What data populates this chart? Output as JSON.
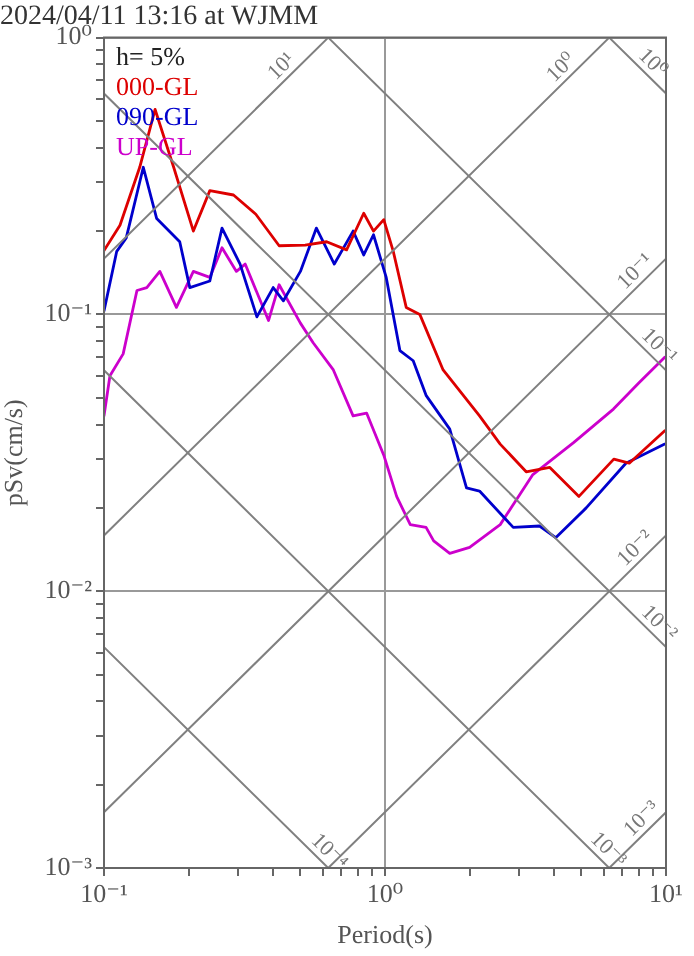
{
  "chart_data": {
    "type": "line",
    "title": "2024/04/11 13:16 at WJMM",
    "xlabel": "Period(s)",
    "ylabel": "pSv(cm/s)",
    "log": "xy",
    "grid": true,
    "legend": "top left",
    "marker": "none",
    "line_style": "solid",
    "xlim": [
      0.1,
      10
    ],
    "ylim": [
      0.001,
      1
    ],
    "xticks": [
      {
        "value": 0.1,
        "label": "10⁻¹"
      },
      {
        "value": 0.2,
        "label": null
      },
      {
        "value": 0.3,
        "label": null
      },
      {
        "value": 0.4,
        "label": null
      },
      {
        "value": 0.5,
        "label": null
      },
      {
        "value": 0.6,
        "label": null
      },
      {
        "value": 0.7,
        "label": null
      },
      {
        "value": 0.8,
        "label": null
      },
      {
        "value": 0.9,
        "label": null
      },
      {
        "value": 1,
        "label": "10⁰"
      },
      {
        "value": 2,
        "label": null
      },
      {
        "value": 3,
        "label": null
      },
      {
        "value": 4,
        "label": null
      },
      {
        "value": 5,
        "label": null
      },
      {
        "value": 6,
        "label": null
      },
      {
        "value": 7,
        "label": null
      },
      {
        "value": 8,
        "label": null
      },
      {
        "value": 9,
        "label": null
      },
      {
        "value": 10,
        "label": "10¹"
      }
    ],
    "yticks": [
      {
        "value": 0.001,
        "label": "10⁻³"
      },
      {
        "value": 0.002,
        "label": null
      },
      {
        "value": 0.003,
        "label": null
      },
      {
        "value": 0.004,
        "label": null
      },
      {
        "value": 0.005,
        "label": null
      },
      {
        "value": 0.006,
        "label": null
      },
      {
        "value": 0.007,
        "label": null
      },
      {
        "value": 0.008,
        "label": null
      },
      {
        "value": 0.009,
        "label": null
      },
      {
        "value": 0.01,
        "label": "10⁻²"
      },
      {
        "value": 0.02,
        "label": null
      },
      {
        "value": 0.03,
        "label": null
      },
      {
        "value": 0.04,
        "label": null
      },
      {
        "value": 0.05,
        "label": null
      },
      {
        "value": 0.06,
        "label": null
      },
      {
        "value": 0.07,
        "label": null
      },
      {
        "value": 0.08,
        "label": null
      },
      {
        "value": 0.09,
        "label": null
      },
      {
        "value": 0.1,
        "label": "10⁻¹"
      },
      {
        "value": 0.2,
        "label": null
      },
      {
        "value": 0.3,
        "label": null
      },
      {
        "value": 0.4,
        "label": null
      },
      {
        "value": 0.5,
        "label": null
      },
      {
        "value": 0.6,
        "label": null
      },
      {
        "value": 0.7,
        "label": null
      },
      {
        "value": 0.8,
        "label": null
      },
      {
        "value": 0.9,
        "label": null
      },
      {
        "value": 1,
        "label": "10⁰"
      }
    ],
    "series": [
      {
        "type": "line",
        "color": "#808080",
        "x": [
          0.1,
          0.628
        ],
        "values": [
          0.159,
          1
        ]
      },
      {
        "type": "line",
        "color": "#808080",
        "x": [
          0.1,
          6.28
        ],
        "values": [
          0.0159,
          1
        ]
      },
      {
        "type": "line",
        "color": "#808080",
        "x": [
          0.1,
          10
        ],
        "values": [
          0.00159,
          0.159
        ]
      },
      {
        "type": "line",
        "color": "#808080",
        "x": [
          0.628,
          10
        ],
        "values": [
          0.001,
          0.0159
        ]
      },
      {
        "type": "line",
        "color": "#808080",
        "x": [
          6.28,
          10
        ],
        "values": [
          0.001,
          0.00159
        ]
      },
      {
        "type": "line",
        "color": "#808080",
        "x": [
          6.28,
          10
        ],
        "values": [
          1,
          0.628
        ]
      },
      {
        "type": "line",
        "color": "#808080",
        "x": [
          0.628,
          10
        ],
        "values": [
          1,
          0.0628
        ]
      },
      {
        "type": "line",
        "color": "#808080",
        "x": [
          0.1,
          10
        ],
        "values": [
          0.628,
          0.00628
        ]
      },
      {
        "type": "line",
        "color": "#808080",
        "x": [
          0.1,
          6.28
        ],
        "values": [
          0.0628,
          0.001
        ]
      },
      {
        "type": "line",
        "color": "#808080",
        "x": [
          0.1,
          0.628
        ],
        "values": [
          0.00628,
          0.001
        ]
      },
      {
        "name": "000-GL",
        "color": "#dd0000",
        "x": [
          0.1,
          0.114,
          0.134,
          0.152,
          0.177,
          0.208,
          0.238,
          0.289,
          0.347,
          0.42,
          0.52,
          0.62,
          0.73,
          0.84,
          0.91,
          0.99,
          1.07,
          1.19,
          1.33,
          1.61,
          2.17,
          2.57,
          3.18,
          3.86,
          4.9,
          6.52,
          7.4,
          9.9
        ],
        "values": [
          0.17,
          0.21,
          0.34,
          0.55,
          0.34,
          0.2,
          0.28,
          0.27,
          0.23,
          0.177,
          0.178,
          0.183,
          0.171,
          0.232,
          0.2,
          0.22,
          0.169,
          0.106,
          0.1,
          0.063,
          0.043,
          0.034,
          0.027,
          0.028,
          0.022,
          0.03,
          0.029,
          0.038
        ]
      },
      {
        "name": "090-GL",
        "color": "#0000cc",
        "x": [
          0.1,
          0.111,
          0.12,
          0.138,
          0.154,
          0.186,
          0.202,
          0.238,
          0.263,
          0.305,
          0.35,
          0.4,
          0.435,
          0.5,
          0.57,
          0.66,
          0.77,
          0.84,
          0.91,
          1.01,
          1.13,
          1.26,
          1.4,
          1.7,
          1.95,
          2.17,
          2.86,
          3.55,
          4.05,
          5.2,
          7.2,
          9.9
        ],
        "values": [
          0.103,
          0.169,
          0.189,
          0.34,
          0.222,
          0.183,
          0.125,
          0.132,
          0.205,
          0.152,
          0.098,
          0.125,
          0.112,
          0.143,
          0.205,
          0.152,
          0.2,
          0.164,
          0.194,
          0.136,
          0.074,
          0.068,
          0.051,
          0.0385,
          0.0236,
          0.023,
          0.017,
          0.0172,
          0.0156,
          0.02,
          0.029,
          0.034
        ]
      },
      {
        "name": "UP-GL",
        "color": "#cc00cc",
        "x": [
          0.1,
          0.105,
          0.117,
          0.131,
          0.142,
          0.158,
          0.181,
          0.208,
          0.238,
          0.263,
          0.296,
          0.318,
          0.385,
          0.42,
          0.5,
          0.555,
          0.655,
          0.77,
          0.86,
          0.99,
          1.1,
          1.23,
          1.4,
          1.49,
          1.7,
          2,
          2.57,
          3.35,
          4.7,
          6.5,
          8,
          9.9
        ],
        "values": [
          0.043,
          0.06,
          0.072,
          0.122,
          0.125,
          0.143,
          0.106,
          0.143,
          0.136,
          0.174,
          0.143,
          0.152,
          0.095,
          0.128,
          0.093,
          0.079,
          0.063,
          0.043,
          0.044,
          0.031,
          0.022,
          0.0174,
          0.017,
          0.0152,
          0.0137,
          0.0144,
          0.0174,
          0.0263,
          0.0345,
          0.0455,
          0.0565,
          0.07
        ]
      }
    ],
    "annotations": [
      "h= 5%",
      {
        "text": "10¹",
        "x": 0.46,
        "y": 0.732
      },
      {
        "text": "10⁰",
        "x": 4.55,
        "y": 0.724
      },
      {
        "text": "10⁰",
        "x": 8.35,
        "y": 0.752
      },
      {
        "text": "10⁻¹",
        "x": 8.35,
        "y": 0.1329
      },
      {
        "text": "10⁻¹",
        "x": 8.8,
        "y": 0.0714
      },
      {
        "text": "10⁻²",
        "x": 8.35,
        "y": 0.01329
      },
      {
        "text": "10⁻²",
        "x": 8.8,
        "y": 0.00714
      },
      {
        "text": "10⁻⁴",
        "x": 0.59,
        "y": 0.001065
      },
      {
        "text": "10⁻³",
        "x": 5.8,
        "y": 0.001083
      },
      {
        "text": "10⁻³",
        "x": 8.8,
        "y": 0.0014
      }
    ]
  }
}
